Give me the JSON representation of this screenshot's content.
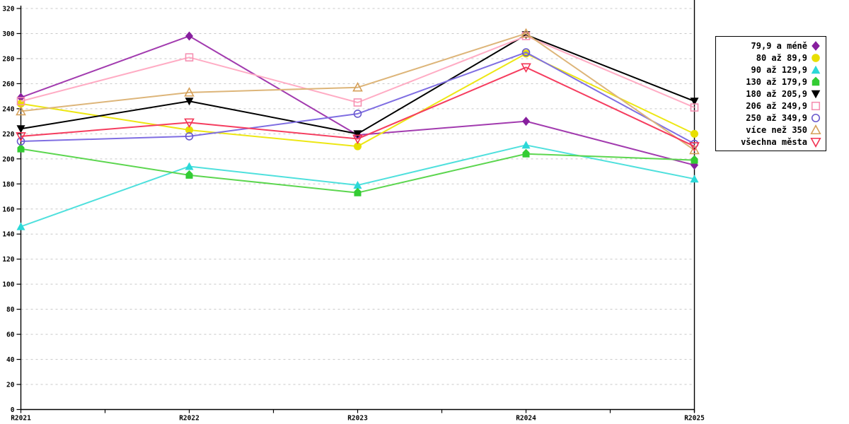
{
  "chart_data": {
    "type": "line",
    "title": "",
    "xlabel": "",
    "ylabel": "",
    "categories": [
      "R2021",
      "R2022",
      "R2023",
      "R2024",
      "R2025"
    ],
    "ylim": [
      0,
      320
    ],
    "ytick_step": 20,
    "yticks": [
      0,
      20,
      40,
      60,
      80,
      100,
      120,
      140,
      160,
      180,
      200,
      220,
      240,
      260,
      280,
      300,
      320
    ],
    "grid": {
      "horizontal": true,
      "style": "dashed",
      "color": "#C8C8C8"
    },
    "axis_color": "#000000",
    "background": "#FFFFFF",
    "legend_position": "right",
    "series": [
      {
        "name": "79,9 a méně",
        "marker": "diamond",
        "line_color": "#A23BAF",
        "marker_color": "#871F9E",
        "values": [
          249,
          298,
          219,
          230,
          195
        ]
      },
      {
        "name": "80 až 89,9",
        "marker": "circle",
        "line_color": "#EDE714",
        "marker_color": "#E8DF00",
        "values": [
          244,
          223,
          210,
          284,
          220
        ]
      },
      {
        "name": "90 až 129,9",
        "marker": "triangle-up",
        "line_color": "#4FE0DD",
        "marker_color": "#2BD8D8",
        "values": [
          146,
          194,
          179,
          211,
          184
        ]
      },
      {
        "name": "130 až 179,9",
        "marker": "house",
        "line_color": "#5CD64F",
        "marker_color": "#33CC33",
        "values": [
          208,
          187,
          173,
          204,
          199
        ]
      },
      {
        "name": "180 až 205,9",
        "marker": "triangle-down",
        "line_color": "#000000",
        "marker_color": "#000000",
        "values": [
          224,
          246,
          220,
          299,
          246
        ]
      },
      {
        "name": "206 až 249,9",
        "marker": "square-open",
        "line_color": "#FFACC4",
        "marker_color": "#F591B2",
        "values": [
          246,
          281,
          245,
          298,
          241
        ]
      },
      {
        "name": "250 až 349,9",
        "marker": "circle-open",
        "line_color": "#7F6EE2",
        "marker_color": "#6A5ACD",
        "values": [
          214,
          218,
          236,
          285,
          212
        ]
      },
      {
        "name": "více než 350",
        "marker": "triangle-up-open",
        "line_color": "#DDB579",
        "marker_color": "#D5A05A",
        "values": [
          238,
          253,
          257,
          300,
          207
        ]
      },
      {
        "name": "všechna města",
        "marker": "triangle-down-open",
        "line_color": "#F53D5F",
        "marker_color": "#F23353",
        "values": [
          218,
          229,
          216,
          273,
          210
        ]
      }
    ]
  }
}
